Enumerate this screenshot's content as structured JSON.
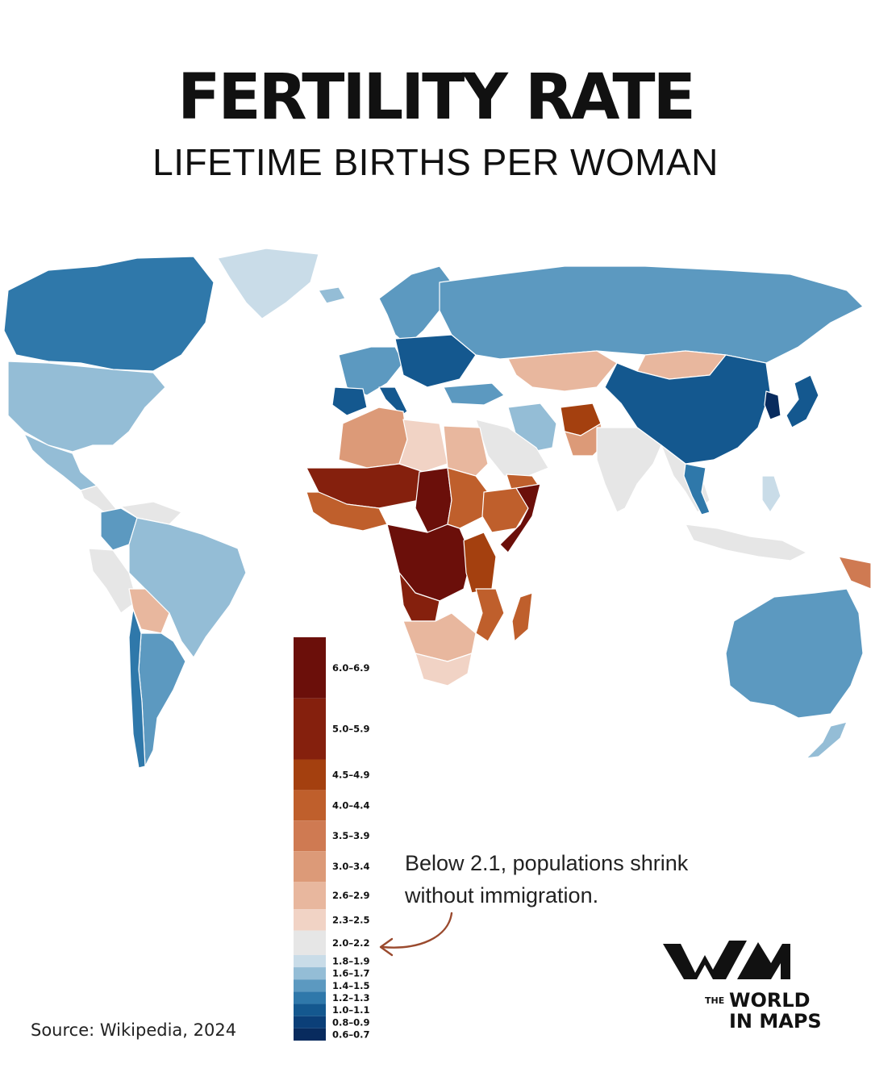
{
  "title": "FERTILITY RATE",
  "subtitle": "LIFETIME BIRTHS PER WOMAN",
  "annotation": {
    "line1": "Below 2.1, populations shrink",
    "line2": "without immigration."
  },
  "source": "Source: Wikipedia, 2024",
  "logo": {
    "prefix": "THE",
    "line1": "WORLD",
    "line2": "IN MAPS"
  },
  "legend": {
    "bins": [
      {
        "label": "6.0–6.9",
        "color": "#6b0f0a",
        "size": 2
      },
      {
        "label": "5.0–5.9",
        "color": "#85200d",
        "size": 2
      },
      {
        "label": "4.5–4.9",
        "color": "#a4400f",
        "size": 1
      },
      {
        "label": "4.0–4.4",
        "color": "#bf5f2c",
        "size": 1
      },
      {
        "label": "3.5–3.9",
        "color": "#cf7a52",
        "size": 1
      },
      {
        "label": "3.0–3.4",
        "color": "#dc9a78",
        "size": 1
      },
      {
        "label": "2.6–2.9",
        "color": "#e8b79e",
        "size": 0.9
      },
      {
        "label": "2.3–2.5",
        "color": "#f1d3c5",
        "size": 0.7
      },
      {
        "label": "2.0–2.2",
        "color": "#e6e6e6",
        "size": 0.8
      },
      {
        "label": "1.8–1.9",
        "color": "#c9dce8",
        "size": 0.4
      },
      {
        "label": "1.6–1.7",
        "color": "#94bdd6",
        "size": 0.4
      },
      {
        "label": "1.4–1.5",
        "color": "#5c99c0",
        "size": 0.4
      },
      {
        "label": "1.2–1.3",
        "color": "#2f78aa",
        "size": 0.4
      },
      {
        "label": "1.0–1.1",
        "color": "#14588f",
        "size": 0.4
      },
      {
        "label": "0.8–0.9",
        "color": "#0b3f78",
        "size": 0.4
      },
      {
        "label": "0.6–0.7",
        "color": "#082b5e",
        "size": 0.4
      }
    ]
  },
  "map_regions": [
    {
      "name": "Canada",
      "bin": 12
    },
    {
      "name": "Greenland",
      "bin": 9
    },
    {
      "name": "United States",
      "bin": 10
    },
    {
      "name": "Mexico",
      "bin": 10
    },
    {
      "name": "Central America",
      "bin": 8
    },
    {
      "name": "Colombia",
      "bin": 11
    },
    {
      "name": "Venezuela",
      "bin": 8
    },
    {
      "name": "Brazil",
      "bin": 10
    },
    {
      "name": "Peru",
      "bin": 8
    },
    {
      "name": "Bolivia",
      "bin": 6
    },
    {
      "name": "Argentina",
      "bin": 11
    },
    {
      "name": "Chile",
      "bin": 12
    },
    {
      "name": "Iceland",
      "bin": 10
    },
    {
      "name": "Scandinavia",
      "bin": 11
    },
    {
      "name": "Western Europe",
      "bin": 11
    },
    {
      "name": "Iberia",
      "bin": 13
    },
    {
      "name": "Italy",
      "bin": 13
    },
    {
      "name": "Eastern Europe",
      "bin": 13
    },
    {
      "name": "Russia",
      "bin": 11
    },
    {
      "name": "Kazakhstan",
      "bin": 6
    },
    {
      "name": "Mongolia",
      "bin": 6
    },
    {
      "name": "China",
      "bin": 13
    },
    {
      "name": "Korea",
      "bin": 15
    },
    {
      "name": "Japan",
      "bin": 13
    },
    {
      "name": "Turkey",
      "bin": 11
    },
    {
      "name": "Iran",
      "bin": 10
    },
    {
      "name": "Afghanistan",
      "bin": 2
    },
    {
      "name": "Pakistan",
      "bin": 5
    },
    {
      "name": "India",
      "bin": 8
    },
    {
      "name": "Arabian Peninsula",
      "bin": 8
    },
    {
      "name": "Yemen",
      "bin": 3
    },
    {
      "name": "Southeast Asia",
      "bin": 8
    },
    {
      "name": "Thailand",
      "bin": 12
    },
    {
      "name": "Indonesia",
      "bin": 8
    },
    {
      "name": "Philippines",
      "bin": 9
    },
    {
      "name": "Papua New Guinea",
      "bin": 4
    },
    {
      "name": "Australia",
      "bin": 11
    },
    {
      "name": "New Zealand",
      "bin": 10
    },
    {
      "name": "Algeria",
      "bin": 5
    },
    {
      "name": "Libya",
      "bin": 7
    },
    {
      "name": "Egypt",
      "bin": 6
    },
    {
      "name": "Mali / Niger",
      "bin": 1
    },
    {
      "name": "West Africa coast",
      "bin": 3
    },
    {
      "name": "Chad",
      "bin": 0
    },
    {
      "name": "Sudan",
      "bin": 3
    },
    {
      "name": "Ethiopia",
      "bin": 3
    },
    {
      "name": "Somalia",
      "bin": 0
    },
    {
      "name": "Central Africa / DR Congo",
      "bin": 0
    },
    {
      "name": "Angola",
      "bin": 1
    },
    {
      "name": "Tanzania",
      "bin": 2
    },
    {
      "name": "Mozambique",
      "bin": 3
    },
    {
      "name": "Madagascar",
      "bin": 3
    },
    {
      "name": "Southern Africa",
      "bin": 6
    },
    {
      "name": "South Africa",
      "bin": 7
    }
  ]
}
